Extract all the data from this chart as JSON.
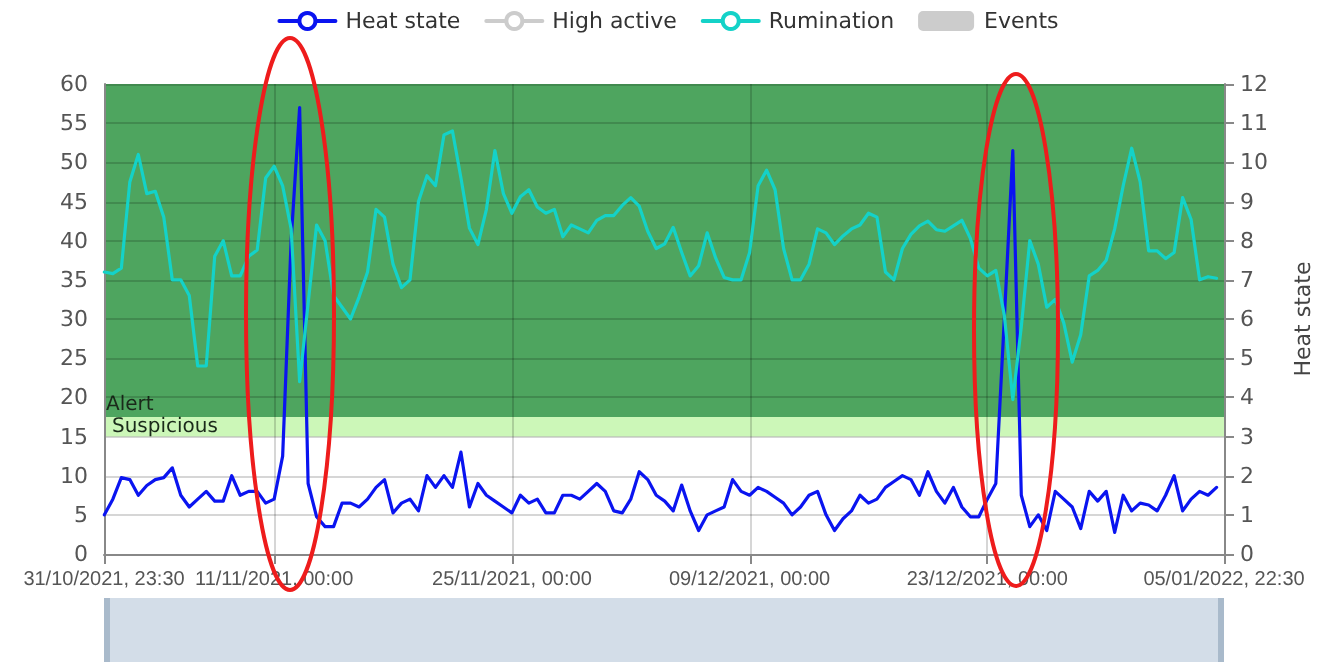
{
  "chart_data": {
    "type": "line",
    "y2label": "Heat state",
    "x": [
      "2021-11-01T00:00",
      "2021-11-01T12:00",
      "2021-11-02T00:00",
      "2021-11-02T12:00",
      "2021-11-03T00:00",
      "2021-11-03T12:00",
      "2021-11-04T00:00",
      "2021-11-04T12:00",
      "2021-11-05T00:00",
      "2021-11-05T12:00",
      "2021-11-06T00:00",
      "2021-11-06T12:00",
      "2021-11-07T00:00",
      "2021-11-07T12:00",
      "2021-11-08T00:00",
      "2021-11-08T12:00",
      "2021-11-09T00:00",
      "2021-11-09T12:00",
      "2021-11-10T00:00",
      "2021-11-10T12:00",
      "2021-11-11T00:00",
      "2021-11-11T12:00",
      "2021-11-12T00:00",
      "2021-11-12T12:00",
      "2021-11-13T00:00",
      "2021-11-13T12:00",
      "2021-11-14T00:00",
      "2021-11-14T12:00",
      "2021-11-15T00:00",
      "2021-11-15T12:00",
      "2021-11-16T00:00",
      "2021-11-16T12:00",
      "2021-11-17T00:00",
      "2021-11-17T12:00",
      "2021-11-18T00:00",
      "2021-11-18T12:00",
      "2021-11-19T00:00",
      "2021-11-19T12:00",
      "2021-11-20T00:00",
      "2021-11-20T12:00",
      "2021-11-21T00:00",
      "2021-11-21T12:00",
      "2021-11-22T00:00",
      "2021-11-22T12:00",
      "2021-11-23T00:00",
      "2021-11-23T12:00",
      "2021-11-24T00:00",
      "2021-11-24T12:00",
      "2021-11-25T00:00",
      "2021-11-25T12:00",
      "2021-11-26T00:00",
      "2021-11-26T12:00",
      "2021-11-27T00:00",
      "2021-11-27T12:00",
      "2021-11-28T00:00",
      "2021-11-28T12:00",
      "2021-11-29T00:00",
      "2021-11-29T12:00",
      "2021-11-30T00:00",
      "2021-11-30T12:00",
      "2021-12-01T00:00",
      "2021-12-01T12:00",
      "2021-12-02T00:00",
      "2021-12-02T12:00",
      "2021-12-03T00:00",
      "2021-12-03T12:00",
      "2021-12-04T00:00",
      "2021-12-04T12:00",
      "2021-12-05T00:00",
      "2021-12-05T12:00",
      "2021-12-06T00:00",
      "2021-12-06T12:00",
      "2021-12-07T00:00",
      "2021-12-07T12:00",
      "2021-12-08T00:00",
      "2021-12-08T12:00",
      "2021-12-09T00:00",
      "2021-12-09T12:00",
      "2021-12-10T00:00",
      "2021-12-10T12:00",
      "2021-12-11T00:00",
      "2021-12-11T12:00",
      "2021-12-12T00:00",
      "2021-12-12T12:00",
      "2021-12-13T00:00",
      "2021-12-13T12:00",
      "2021-12-14T00:00",
      "2021-12-14T12:00",
      "2021-12-15T00:00",
      "2021-12-15T12:00",
      "2021-12-16T00:00",
      "2021-12-16T12:00",
      "2021-12-17T00:00",
      "2021-12-17T12:00",
      "2021-12-18T00:00",
      "2021-12-18T12:00",
      "2021-12-19T00:00",
      "2021-12-19T12:00",
      "2021-12-20T00:00",
      "2021-12-20T12:00",
      "2021-12-21T00:00",
      "2021-12-21T12:00",
      "2021-12-22T00:00",
      "2021-12-22T12:00",
      "2021-12-23T00:00",
      "2021-12-23T12:00",
      "2021-12-24T00:00",
      "2021-12-24T12:00",
      "2021-12-25T00:00",
      "2021-12-25T12:00",
      "2021-12-26T00:00",
      "2021-12-26T12:00",
      "2021-12-27T00:00",
      "2021-12-27T12:00",
      "2021-12-28T00:00",
      "2021-12-28T12:00",
      "2021-12-29T00:00",
      "2021-12-29T12:00",
      "2021-12-30T00:00",
      "2021-12-30T12:00",
      "2021-12-31T00:00",
      "2021-12-31T12:00",
      "2022-01-01T00:00",
      "2022-01-01T12:00",
      "2022-01-02T00:00",
      "2022-01-02T12:00",
      "2022-01-03T00:00",
      "2022-01-03T12:00",
      "2022-01-04T00:00",
      "2022-01-04T12:00",
      "2022-01-05T00:00",
      "2022-01-05T12:00"
    ],
    "series": [
      {
        "name": "Heat state",
        "color": "#0a14f0",
        "axis": "y2",
        "values": [
          1.0,
          1.4,
          1.95,
          1.9,
          1.5,
          1.75,
          1.9,
          1.95,
          2.2,
          1.5,
          1.2,
          1.4,
          1.6,
          1.35,
          1.35,
          2.0,
          1.5,
          1.6,
          1.6,
          1.3,
          1.4,
          2.5,
          8.0,
          11.4,
          1.8,
          0.95,
          0.7,
          0.7,
          1.3,
          1.3,
          1.2,
          1.4,
          1.7,
          1.9,
          1.05,
          1.3,
          1.4,
          1.1,
          2.0,
          1.7,
          2.0,
          1.7,
          2.6,
          1.2,
          1.8,
          1.5,
          1.35,
          1.2,
          1.05,
          1.5,
          1.3,
          1.4,
          1.05,
          1.05,
          1.5,
          1.5,
          1.4,
          1.6,
          1.8,
          1.6,
          1.1,
          1.05,
          1.4,
          2.1,
          1.9,
          1.5,
          1.35,
          1.1,
          1.76,
          1.1,
          0.6,
          1.0,
          1.1,
          1.2,
          1.9,
          1.6,
          1.5,
          1.7,
          1.6,
          1.45,
          1.3,
          1.0,
          1.2,
          1.5,
          1.6,
          1.0,
          0.6,
          0.9,
          1.1,
          1.5,
          1.3,
          1.4,
          1.7,
          1.85,
          2.0,
          1.9,
          1.5,
          2.1,
          1.6,
          1.3,
          1.7,
          1.2,
          0.95,
          0.95,
          1.4,
          1.8,
          6.0,
          10.3,
          1.5,
          0.7,
          1.0,
          0.6,
          1.6,
          1.4,
          1.2,
          0.65,
          1.6,
          1.35,
          1.6,
          0.55,
          1.5,
          1.1,
          1.3,
          1.25,
          1.1,
          1.5,
          2.0,
          1.1,
          1.4,
          1.6,
          1.5,
          1.7
        ]
      },
      {
        "name": "High active",
        "color": "#cccccc",
        "values": [
          null,
          null,
          null,
          null,
          null,
          null,
          null,
          null,
          null,
          null,
          null,
          null,
          null,
          null,
          null,
          null,
          null,
          null,
          null,
          null,
          null,
          null,
          null,
          null,
          null,
          null,
          null,
          null,
          null,
          null,
          null,
          null,
          null,
          null,
          null,
          null,
          null,
          null,
          null,
          null,
          null,
          null,
          null,
          null,
          null,
          null,
          null,
          null,
          null,
          null,
          null,
          null,
          null,
          null,
          null,
          null,
          null,
          null,
          null,
          null,
          null,
          null,
          null,
          null,
          null,
          null,
          null,
          null,
          null,
          null,
          null,
          null,
          null,
          null,
          null,
          null,
          null,
          null,
          null,
          null,
          null,
          null,
          null,
          null,
          null,
          null,
          null,
          null,
          null,
          null,
          null,
          null,
          null,
          null,
          null,
          null,
          null,
          null,
          null,
          null,
          null,
          null,
          null,
          null,
          null,
          null,
          null,
          null,
          null,
          null,
          null,
          null,
          null,
          null,
          null,
          null,
          null,
          null,
          null,
          null,
          null,
          null,
          null,
          null,
          null,
          null,
          null,
          null,
          null,
          null,
          null,
          null
        ]
      },
      {
        "name": "Rumination",
        "color": "#14d2c8",
        "values": [
          36,
          35.8,
          36.5,
          47.5,
          51,
          46,
          46.3,
          43,
          35,
          35,
          33,
          24,
          24,
          38,
          40,
          35.5,
          35.5,
          38,
          38.8,
          48,
          49.5,
          47,
          41.5,
          22,
          32,
          42,
          40,
          33,
          31.5,
          30,
          32.8,
          36,
          44,
          43,
          37,
          34,
          35,
          45,
          48.3,
          47,
          53.5,
          54,
          48,
          41.6,
          39.5,
          44,
          51.5,
          46,
          43.5,
          45.6,
          46.5,
          44.3,
          43.5,
          44,
          40.5,
          42,
          41.5,
          41,
          42.6,
          43.2,
          43.2,
          44.5,
          45.5,
          44.4,
          41.2,
          39,
          39.6,
          41.7,
          38.5,
          35.5,
          36.8,
          41,
          37.8,
          35.3,
          35,
          35,
          38.5,
          47,
          49,
          46.5,
          39,
          35,
          35,
          37,
          41.5,
          41,
          39.5,
          40.6,
          41.5,
          42,
          43.5,
          43,
          36,
          35,
          39,
          40.8,
          41.9,
          42.5,
          41.4,
          41.2,
          41.9,
          42.6,
          40.3,
          36.5,
          35.5,
          36.2,
          30.5,
          19.7,
          29,
          40,
          37,
          31.5,
          32.5,
          29.5,
          24.5,
          28,
          35.5,
          36.2,
          37.5,
          41.5,
          47,
          51.8,
          47.5,
          38.7,
          38.7,
          37.7,
          38.5,
          45.5,
          42.7,
          35,
          35.4,
          35.2
        ]
      },
      {
        "name": "Events",
        "type": "bar",
        "color": "#cccccc",
        "values": [
          null,
          null,
          null,
          null,
          null,
          null,
          null,
          null,
          null,
          null,
          null,
          null,
          null,
          null,
          null,
          null,
          null,
          null,
          null,
          null,
          null,
          null,
          null,
          null,
          null,
          null,
          null,
          null,
          null,
          null,
          null,
          null,
          null,
          null,
          null,
          null,
          null,
          null,
          null,
          null,
          null,
          null,
          null,
          null,
          null,
          null,
          null,
          null,
          null,
          null,
          null,
          null,
          null,
          null,
          null,
          null,
          null,
          null,
          null,
          null,
          null,
          null,
          null,
          null,
          null,
          null,
          null,
          null,
          null,
          null,
          null,
          null,
          null,
          null,
          null,
          null,
          null,
          null,
          null,
          null,
          null,
          null,
          null,
          null,
          null,
          null,
          null,
          null,
          null,
          null,
          null,
          null,
          null,
          null,
          null,
          null,
          null,
          null,
          null,
          null,
          null,
          null,
          null,
          null,
          null,
          null,
          null,
          null,
          null,
          null,
          null,
          null,
          null,
          null,
          null,
          null,
          null,
          null,
          null,
          null,
          null,
          null,
          null,
          null,
          null,
          null,
          null,
          null,
          null,
          null,
          null,
          null
        ]
      }
    ],
    "xlim": [
      "2021-10-31T23:30",
      "2022-01-05T22:30"
    ],
    "xticks": [
      {
        "value": "2021-10-31T23:30",
        "label": "31/10/2021, 23:30"
      },
      {
        "value": "2021-11-11T00:00",
        "label": "11/11/2021, 00:00"
      },
      {
        "value": "2021-11-25T00:00",
        "label": "25/11/2021, 00:00"
      },
      {
        "value": "2021-12-09T00:00",
        "label": "09/12/2021, 00:00"
      },
      {
        "value": "2021-12-23T00:00",
        "label": "23/12/2021, 00:00"
      },
      {
        "value": "2022-01-05T22:30",
        "label": "05/01/2022, 22:30"
      }
    ],
    "ylim": [
      0,
      60
    ],
    "yticks": [
      0,
      5,
      10,
      15,
      20,
      25,
      30,
      35,
      40,
      45,
      50,
      55,
      60
    ],
    "y2lim": [
      0,
      12
    ],
    "y2ticks": [
      0,
      1,
      2,
      3,
      4,
      5,
      6,
      7,
      8,
      9,
      10,
      11,
      12
    ],
    "bands": [
      {
        "axis": "y",
        "from": 17.5,
        "to": 60,
        "label": "Alert",
        "color": "#4ea55f"
      },
      {
        "axis": "y",
        "from": 15,
        "to": 17.5,
        "label": "Suspicious",
        "color": "#ccf7b8"
      }
    ],
    "grid": true,
    "legend": "top",
    "marker": "none",
    "line_style": "solid"
  }
}
